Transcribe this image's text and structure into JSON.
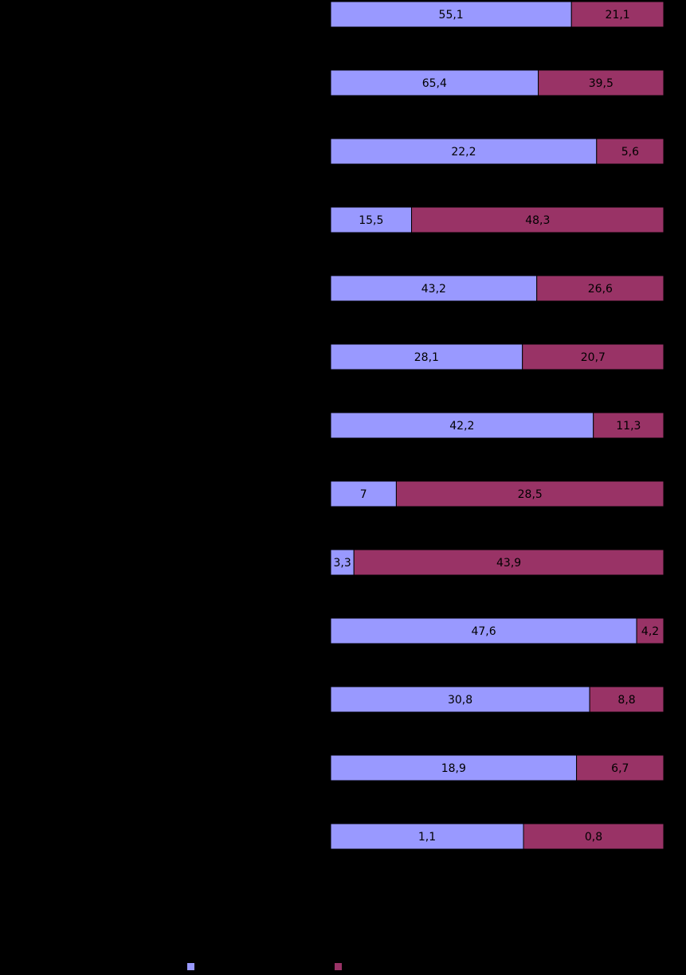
{
  "chart_data": {
    "type": "bar",
    "orientation": "horizontal",
    "stacked": "percent",
    "title": "",
    "xlabel": "",
    "ylabel": "",
    "categories": [
      "",
      "",
      "",
      "",
      "",
      "",
      "",
      "",
      "",
      "",
      "",
      "",
      ""
    ],
    "series": [
      {
        "color": "#9999ff",
        "values": [
          55.1,
          65.4,
          22.2,
          15.5,
          43.2,
          28.1,
          42.2,
          7,
          3.3,
          47.6,
          30.8,
          18.9,
          1.1
        ],
        "labels": [
          "55,1",
          "65,4",
          "22,2",
          "15,5",
          "43,2",
          "28,1",
          "42,2",
          "7",
          "3,3",
          "47,6",
          "30,8",
          "18,9",
          "1,1"
        ]
      },
      {
        "color": "#993366",
        "values": [
          21.1,
          39.5,
          5.6,
          48.3,
          26.6,
          20.7,
          11.3,
          28.5,
          43.9,
          4.2,
          8.8,
          6.7,
          0.8
        ],
        "labels": [
          "21,1",
          "39,5",
          "5,6",
          "48,3",
          "26,6",
          "20,7",
          "11,3",
          "28,5",
          "43,9",
          "4,2",
          "8,8",
          "6,7",
          "0,8"
        ]
      }
    ],
    "xlim": [
      0,
      100
    ],
    "grid": false,
    "legend": "bottom"
  }
}
